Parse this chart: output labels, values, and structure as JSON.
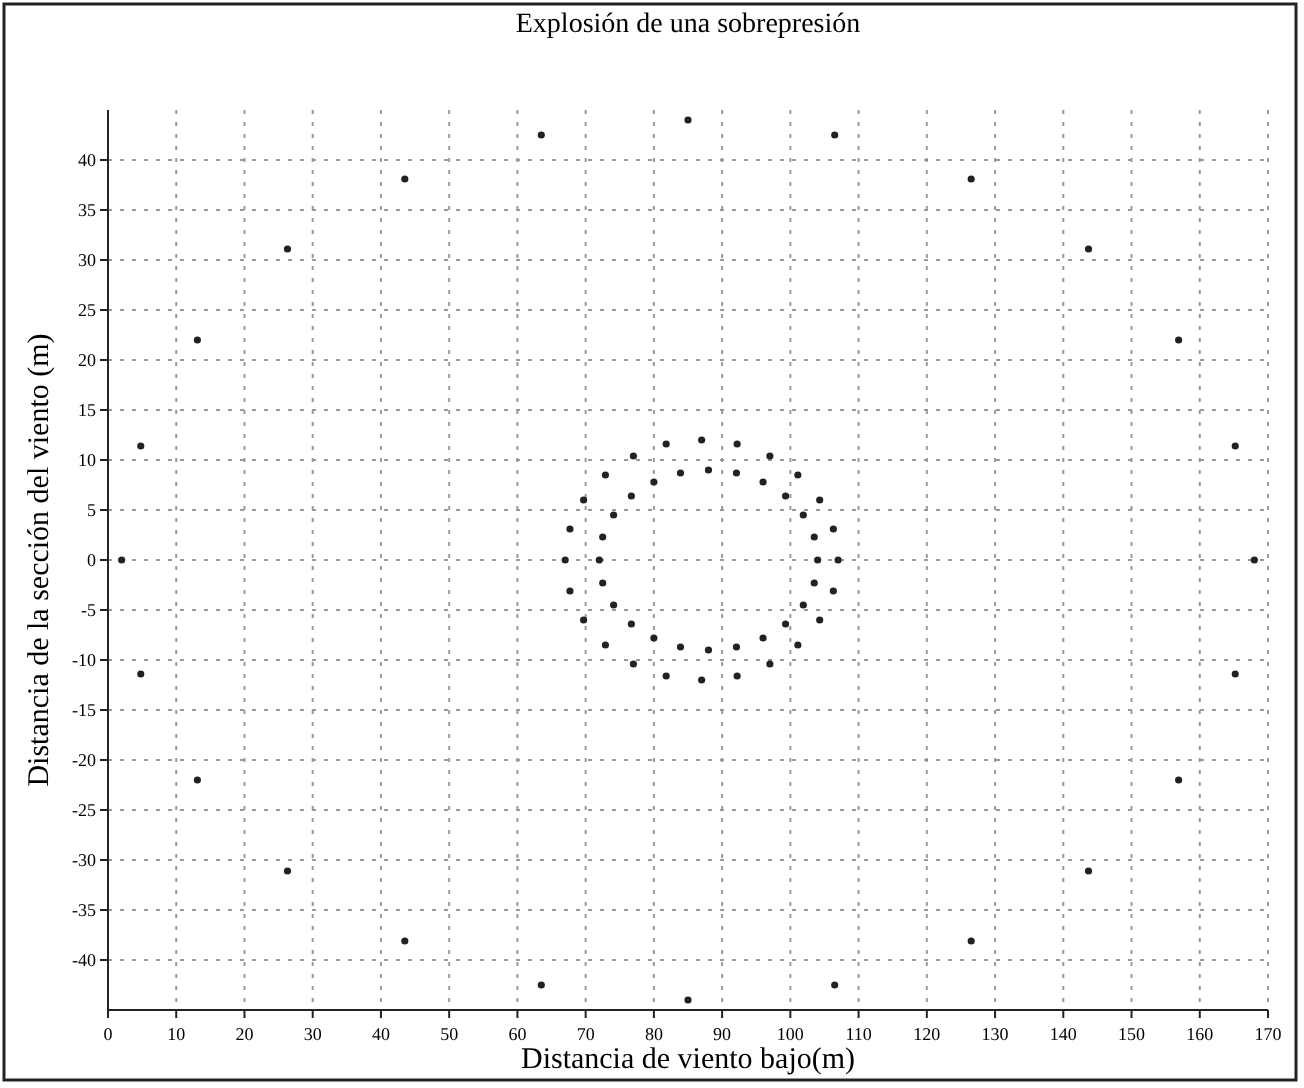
{
  "chart_data": {
    "type": "scatter",
    "title": "Explosión de una sobrepresión",
    "xlabel": "Distancia de viento bajo(m)",
    "ylabel": "Distancia de la sección del viento (m)",
    "xlim": [
      0,
      170
    ],
    "xticks": [
      0,
      10,
      20,
      30,
      40,
      50,
      60,
      70,
      80,
      90,
      100,
      110,
      120,
      130,
      140,
      150,
      160,
      170
    ],
    "ylim": [
      -45,
      45
    ],
    "yticks": [
      -40,
      -35,
      -30,
      -25,
      -20,
      -15,
      -10,
      -5,
      0,
      5,
      10,
      15,
      20,
      25,
      30,
      35,
      40
    ],
    "grid": true,
    "marker": "circle",
    "series": [
      {
        "color": "#222222",
        "x": [
          168,
          165.2,
          156.9,
          143.7,
          126.5,
          106.5,
          85,
          63.5,
          43.5,
          26.3,
          13.1,
          4.8,
          2,
          4.8,
          13.1,
          26.3,
          43.5,
          63.5,
          85,
          106.5,
          126.5,
          143.7,
          156.9,
          165.2
        ],
        "values": [
          0,
          11.4,
          22,
          31.1,
          38.1,
          42.5,
          44,
          42.5,
          38.1,
          31.1,
          22,
          11.4,
          0,
          -11.4,
          -22,
          -31.1,
          -38.1,
          -42.5,
          -44,
          -42.5,
          -38.1,
          -31.1,
          -22,
          -11.4
        ]
      },
      {
        "color": "#222222",
        "x": [
          107,
          106.3,
          104.3,
          101.1,
          97,
          92.2,
          87,
          81.8,
          77,
          72.9,
          69.7,
          67.7,
          67,
          67.7,
          69.7,
          72.9,
          77,
          81.8,
          87,
          92.2,
          97,
          101.1,
          104.3,
          106.3
        ],
        "values": [
          0,
          3.1,
          6,
          8.5,
          10.4,
          11.6,
          12,
          11.6,
          10.4,
          8.5,
          6,
          3.1,
          0,
          -3.1,
          -6,
          -8.5,
          -10.4,
          -11.6,
          -12,
          -11.6,
          -10.4,
          -8.5,
          -6,
          -3.1
        ]
      },
      {
        "color": "#222222",
        "x": [
          104,
          103.5,
          101.9,
          99.3,
          96,
          92.1,
          88,
          83.9,
          80,
          76.7,
          74.1,
          72.5,
          72,
          72.5,
          74.1,
          76.7,
          80,
          83.9,
          88,
          92.1,
          96,
          99.3,
          101.9,
          103.5
        ],
        "values": [
          0,
          2.3,
          4.5,
          6.4,
          7.8,
          8.7,
          9,
          8.7,
          7.8,
          6.4,
          4.5,
          2.3,
          0,
          -2.3,
          -4.5,
          -6.4,
          -7.8,
          -8.7,
          -9,
          -8.7,
          -7.8,
          -6.4,
          -4.5,
          -2.3
        ]
      }
    ]
  }
}
